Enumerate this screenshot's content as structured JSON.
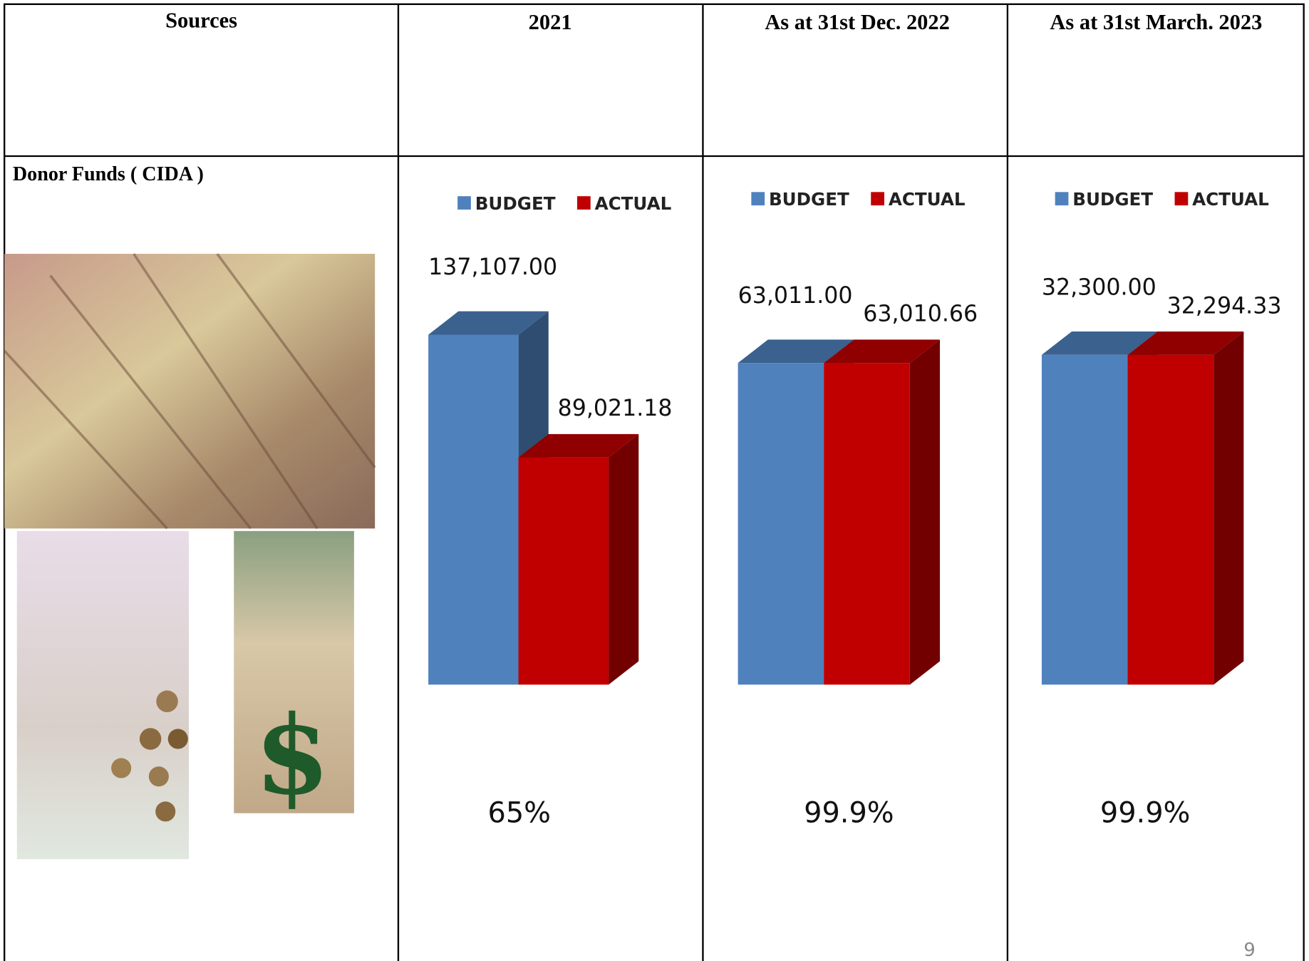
{
  "table": {
    "headers": [
      "Sources",
      "2021",
      "As at 31st Dec. 2022",
      "As at 31st March. 2023"
    ],
    "row_label": "Donor Funds ( CIDA )"
  },
  "chart_data": [
    {
      "type": "bar",
      "categories": [
        null
      ],
      "legend": "top",
      "series": [
        {
          "name": "BUDGET",
          "color": "#4f81bd",
          "values": [
            137107
          ],
          "value_labels": [
            "137,107.00"
          ]
        },
        {
          "name": "ACTUAL",
          "color": "#c00000",
          "values": [
            89021.18
          ],
          "value_labels": [
            "89,021.18"
          ]
        }
      ],
      "ylim": [
        0,
        140000
      ],
      "annotation": "65%"
    },
    {
      "type": "bar",
      "categories": [
        null
      ],
      "legend": "top",
      "series": [
        {
          "name": "BUDGET",
          "color": "#4f81bd",
          "values": [
            63011
          ],
          "value_labels": [
            "63,011.00"
          ]
        },
        {
          "name": "ACTUAL",
          "color": "#c00000",
          "values": [
            63010.66
          ],
          "value_labels": [
            "63,010.66"
          ]
        }
      ],
      "ylim": [
        0,
        70000
      ],
      "annotation": "99.9%"
    },
    {
      "type": "bar",
      "categories": [
        null
      ],
      "legend": "top",
      "series": [
        {
          "name": "BUDGET",
          "color": "#4f81bd",
          "values": [
            32300
          ],
          "value_labels": [
            "32,300.00"
          ]
        },
        {
          "name": "ACTUAL",
          "color": "#c00000",
          "values": [
            32294.33
          ],
          "value_labels": [
            "32,294.33"
          ]
        }
      ],
      "ylim": [
        0,
        35000
      ],
      "annotation": "99.9%"
    }
  ],
  "page_number": "9"
}
